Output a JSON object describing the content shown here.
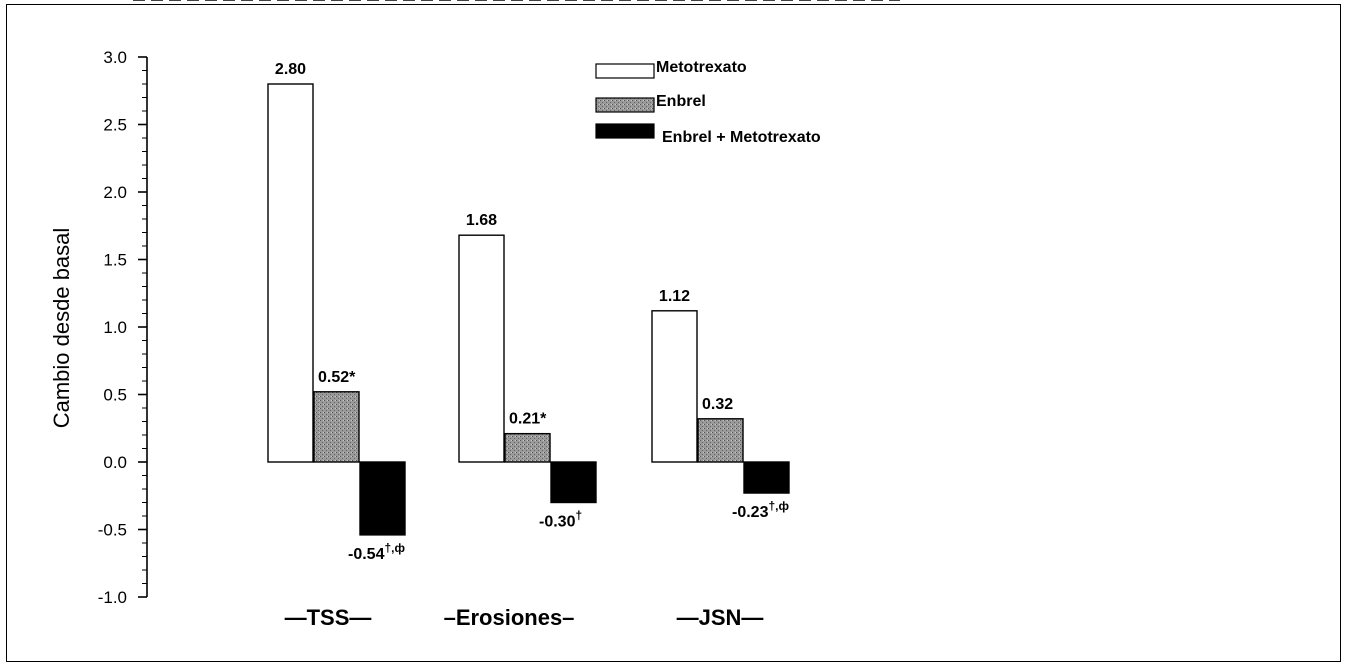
{
  "chart_data": {
    "type": "bar",
    "ylabel": "Cambio desde basal",
    "ylim": [
      -1.0,
      3.0
    ],
    "yticks": [
      "3.0",
      "2.5",
      "2.0",
      "1.5",
      "1.0",
      "0.5",
      "0.0",
      "-0.5",
      "-1.0"
    ],
    "ytick_values": [
      3.0,
      2.5,
      2.0,
      1.5,
      1.0,
      0.5,
      0.0,
      -0.5,
      -1.0
    ],
    "categories": [
      "TSS",
      "Erosiones",
      "JSN"
    ],
    "category_labels": [
      "—TSS—",
      "–Erosiones–",
      "—JSN—"
    ],
    "zero_line": "dashed",
    "legend_position": "top-right",
    "series": [
      {
        "name": "Metotrexato",
        "color": "#ffffff",
        "values": [
          2.8,
          1.68,
          1.12
        ],
        "labels": [
          "2.80",
          "1.68",
          "1.12"
        ],
        "marks": [
          "",
          "",
          ""
        ]
      },
      {
        "name": "Enbrel",
        "color": "#8c8c8c",
        "values": [
          0.52,
          0.21,
          0.32
        ],
        "labels": [
          "0.52",
          "0.21",
          "0.32"
        ],
        "marks": [
          "*",
          "*",
          ""
        ]
      },
      {
        "name": "Enbrel + Metotrexato",
        "color": "#000000",
        "values": [
          -0.54,
          -0.3,
          -0.23
        ],
        "labels": [
          "-0.54",
          "-0.30",
          "-0.23"
        ],
        "marks": [
          "†,ф",
          "†",
          "†,ф"
        ]
      }
    ]
  }
}
